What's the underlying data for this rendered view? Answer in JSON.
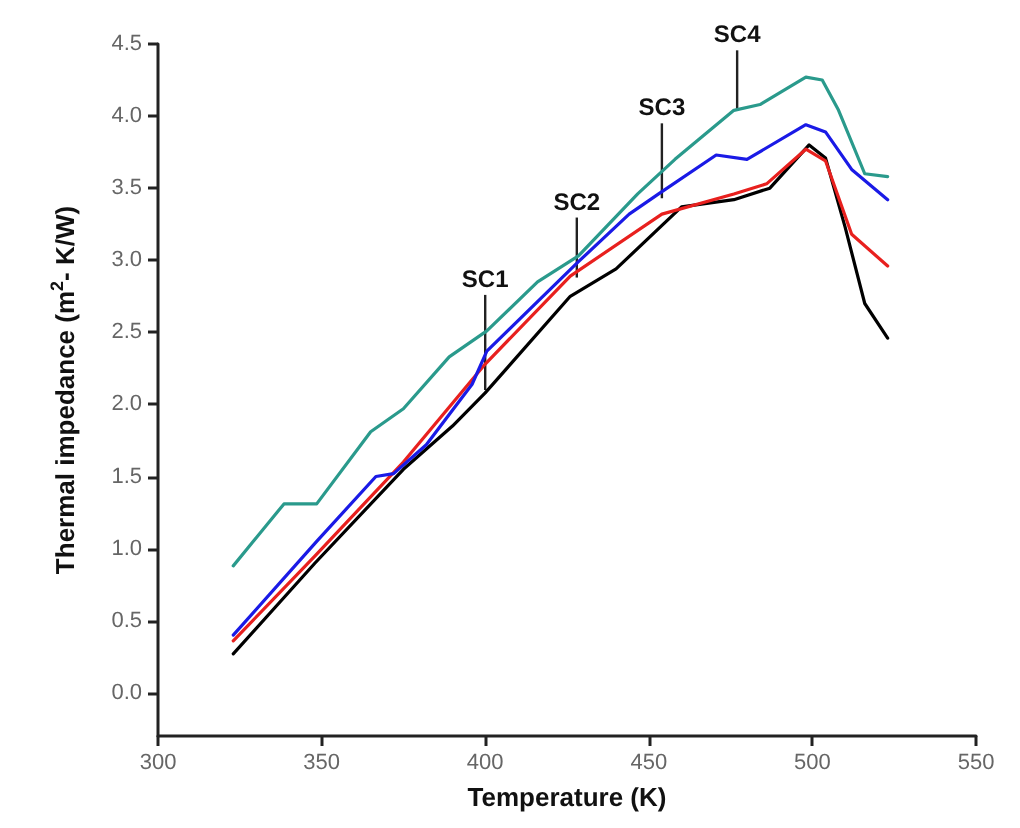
{
  "chart_data": {
    "type": "line",
    "xlabel": "Temperature (K)",
    "ylabel": "Thermal impedance (m$^{2}$- K/W)",
    "xlim": [
      300,
      550
    ],
    "xticks": [
      300,
      350,
      400,
      450,
      500,
      550
    ],
    "ylim": [
      -0.3,
      4.5
    ],
    "yticks": [
      {
        "value": 0,
        "label": "0.0"
      },
      {
        "value": 0.5,
        "label": "0.5"
      },
      {
        "value": 1,
        "label": "1.0"
      },
      {
        "value": 1.5,
        "label": "1.5"
      },
      {
        "value": 2,
        "label": "2.0"
      },
      {
        "value": 2.5,
        "label": "2.5"
      },
      {
        "value": 3,
        "label": "3.0"
      },
      {
        "value": 3.5,
        "label": "3.5"
      },
      {
        "value": 4,
        "label": "4.0"
      },
      {
        "value": 4.5,
        "label": "4.5"
      }
    ],
    "grid": false,
    "marker": "none",
    "line_style": "solid",
    "annotations": [
      {
        "text": "SC1",
        "x": 400,
        "y": 2.1
      },
      {
        "text": "SC2",
        "x": 428,
        "y": 2.88
      },
      {
        "text": "SC3",
        "x": 454,
        "y": 3.43
      },
      {
        "text": "SC4",
        "x": 477,
        "y": 4.04
      }
    ],
    "series": [
      {
        "color": "#000000",
        "x": [
          323,
          348,
          375,
          390,
          400,
          426,
          440,
          460,
          476,
          487,
          499,
          504,
          510,
          516,
          523
        ],
        "values": [
          0.27,
          0.9,
          1.55,
          1.85,
          2.08,
          2.75,
          2.94,
          3.37,
          3.42,
          3.5,
          3.8,
          3.71,
          3.23,
          2.7,
          2.46
        ]
      },
      {
        "color": "#e8201e",
        "x": [
          323,
          348,
          375,
          400,
          426,
          454,
          476,
          486,
          498,
          504,
          512,
          523
        ],
        "values": [
          0.36,
          0.95,
          1.6,
          2.28,
          2.89,
          3.32,
          3.46,
          3.53,
          3.77,
          3.69,
          3.18,
          2.96
        ]
      },
      {
        "color": "#1a1ae6",
        "x": [
          323,
          348.5,
          366.6,
          372,
          382,
          396,
          400.5,
          428.5,
          444,
          453,
          470.6,
          480,
          498,
          504,
          512,
          523
        ],
        "values": [
          0.4,
          1.05,
          1.5,
          1.52,
          1.72,
          2.14,
          2.37,
          2.99,
          3.32,
          3.46,
          3.73,
          3.7,
          3.94,
          3.89,
          3.63,
          3.42
        ]
      },
      {
        "color": "#2a9a8c",
        "x": [
          323,
          338.5,
          348.5,
          365,
          375,
          389,
          400.5,
          416,
          428.5,
          446.6,
          458,
          476,
          484,
          498,
          503,
          508,
          516,
          523
        ],
        "values": [
          0.88,
          1.31,
          1.31,
          1.81,
          1.97,
          2.33,
          2.51,
          2.85,
          3.03,
          3.46,
          3.7,
          4.04,
          4.08,
          4.27,
          4.25,
          4.04,
          3.6,
          3.58
        ]
      }
    ]
  }
}
